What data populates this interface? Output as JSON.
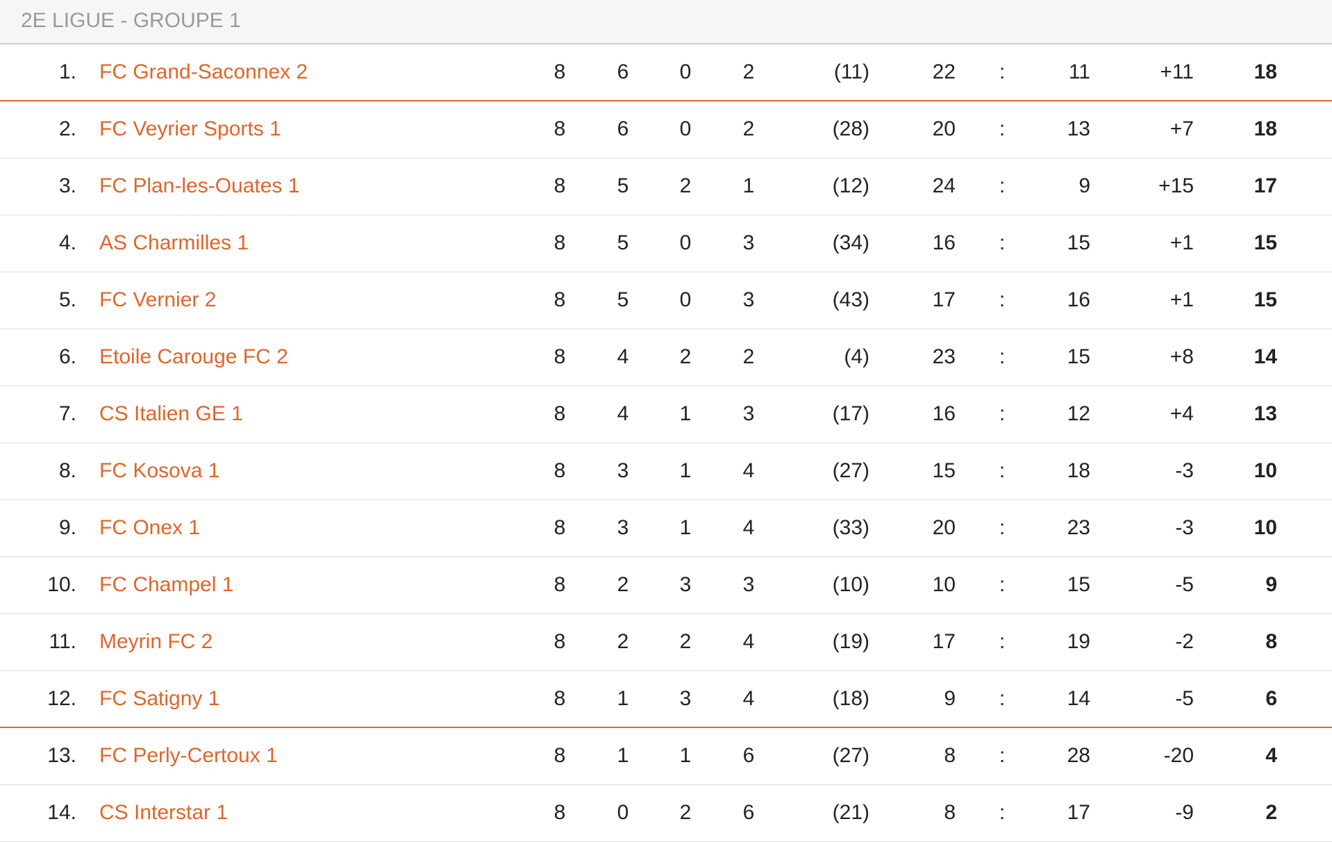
{
  "header": {
    "title": "2E LIGUE - GROUPE 1"
  },
  "colors": {
    "accent": "#e0652a",
    "header_text": "#9a9a9a"
  },
  "rows": [
    {
      "rank": "1.",
      "team": "FC Grand-Saconnex 2",
      "played": "8",
      "won": "6",
      "drawn": "0",
      "lost": "2",
      "tiebreak": "(11)",
      "gf": "22",
      "sep": ":",
      "ga": "11",
      "diff": "+11",
      "pts": "18"
    },
    {
      "rank": "2.",
      "team": "FC Veyrier Sports 1",
      "played": "8",
      "won": "6",
      "drawn": "0",
      "lost": "2",
      "tiebreak": "(28)",
      "gf": "20",
      "sep": ":",
      "ga": "13",
      "diff": "+7",
      "pts": "18"
    },
    {
      "rank": "3.",
      "team": "FC Plan-les-Ouates 1",
      "played": "8",
      "won": "5",
      "drawn": "2",
      "lost": "1",
      "tiebreak": "(12)",
      "gf": "24",
      "sep": ":",
      "ga": "9",
      "diff": "+15",
      "pts": "17"
    },
    {
      "rank": "4.",
      "team": "AS Charmilles 1",
      "played": "8",
      "won": "5",
      "drawn": "0",
      "lost": "3",
      "tiebreak": "(34)",
      "gf": "16",
      "sep": ":",
      "ga": "15",
      "diff": "+1",
      "pts": "15"
    },
    {
      "rank": "5.",
      "team": "FC Vernier 2",
      "played": "8",
      "won": "5",
      "drawn": "0",
      "lost": "3",
      "tiebreak": "(43)",
      "gf": "17",
      "sep": ":",
      "ga": "16",
      "diff": "+1",
      "pts": "15"
    },
    {
      "rank": "6.",
      "team": "Etoile Carouge FC 2",
      "played": "8",
      "won": "4",
      "drawn": "2",
      "lost": "2",
      "tiebreak": "(4)",
      "gf": "23",
      "sep": ":",
      "ga": "15",
      "diff": "+8",
      "pts": "14"
    },
    {
      "rank": "7.",
      "team": "CS Italien GE 1",
      "played": "8",
      "won": "4",
      "drawn": "1",
      "lost": "3",
      "tiebreak": "(17)",
      "gf": "16",
      "sep": ":",
      "ga": "12",
      "diff": "+4",
      "pts": "13"
    },
    {
      "rank": "8.",
      "team": "FC Kosova 1",
      "played": "8",
      "won": "3",
      "drawn": "1",
      "lost": "4",
      "tiebreak": "(27)",
      "gf": "15",
      "sep": ":",
      "ga": "18",
      "diff": "-3",
      "pts": "10"
    },
    {
      "rank": "9.",
      "team": "FC Onex 1",
      "played": "8",
      "won": "3",
      "drawn": "1",
      "lost": "4",
      "tiebreak": "(33)",
      "gf": "20",
      "sep": ":",
      "ga": "23",
      "diff": "-3",
      "pts": "10"
    },
    {
      "rank": "10.",
      "team": "FC Champel 1",
      "played": "8",
      "won": "2",
      "drawn": "3",
      "lost": "3",
      "tiebreak": "(10)",
      "gf": "10",
      "sep": ":",
      "ga": "15",
      "diff": "-5",
      "pts": "9"
    },
    {
      "rank": "11.",
      "team": "Meyrin FC 2",
      "played": "8",
      "won": "2",
      "drawn": "2",
      "lost": "4",
      "tiebreak": "(19)",
      "gf": "17",
      "sep": ":",
      "ga": "19",
      "diff": "-2",
      "pts": "8"
    },
    {
      "rank": "12.",
      "team": "FC Satigny 1",
      "played": "8",
      "won": "1",
      "drawn": "3",
      "lost": "4",
      "tiebreak": "(18)",
      "gf": "9",
      "sep": ":",
      "ga": "14",
      "diff": "-5",
      "pts": "6"
    },
    {
      "rank": "13.",
      "team": "FC Perly-Certoux 1",
      "played": "8",
      "won": "1",
      "drawn": "1",
      "lost": "6",
      "tiebreak": "(27)",
      "gf": "8",
      "sep": ":",
      "ga": "28",
      "diff": "-20",
      "pts": "4"
    },
    {
      "rank": "14.",
      "team": "CS Interstar 1",
      "played": "8",
      "won": "0",
      "drawn": "2",
      "lost": "6",
      "tiebreak": "(21)",
      "gf": "8",
      "sep": ":",
      "ga": "17",
      "diff": "-9",
      "pts": "2"
    }
  ]
}
